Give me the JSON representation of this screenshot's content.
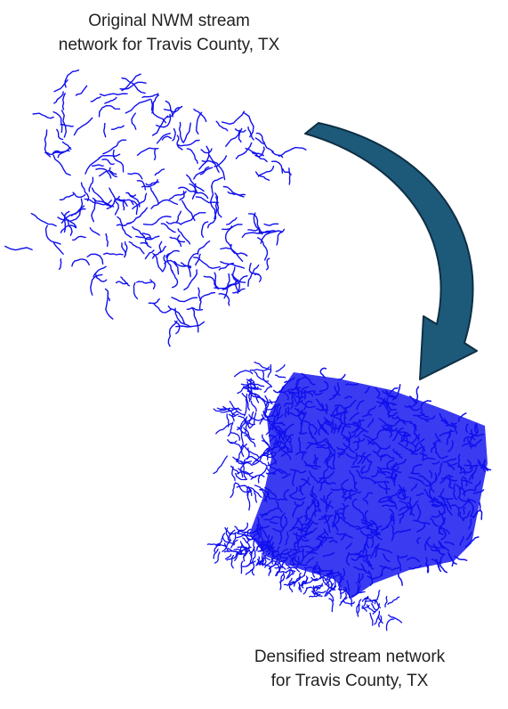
{
  "top_caption": {
    "line1": "Original NWM stream",
    "line2": "network for Travis County, TX"
  },
  "bottom_caption": {
    "line1": "Densified stream network",
    "line2": "for Travis County, TX"
  },
  "colors": {
    "stream": "#1010ee",
    "arrow_fill": "#1d5a7a",
    "arrow_stroke": "#0e2f44",
    "text": "#222222"
  },
  "icons": {
    "arrow": "curved-arrow-icon"
  }
}
